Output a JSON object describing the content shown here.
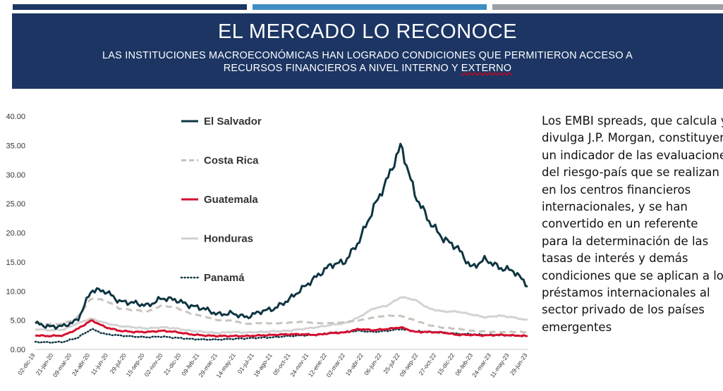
{
  "header": {
    "title": "EL MERCADO LO RECONOCE",
    "subtitle_line1": "LAS INSTITUCIONES MACROECONÓMICAS HAN LOGRADO CONDICIONES QUE PERMITIERON ACCESO A",
    "subtitle_line2a": "RECURSOS FINANCIEROS A NIVEL INTERNO Y ",
    "subtitle_line2b": "EXTERNO"
  },
  "colors": {
    "bar1": "#1c3563",
    "bar2": "#3e8ec2",
    "bar3": "#9aa0a6",
    "header_bg": "#1c3563"
  },
  "description": [
    "Los EMBI spreads, que calcula y",
    "divulga J.P. Morgan, constituyen",
    "un indicador de las evaluaciones",
    "del riesgo-país que se realizan",
    "en los centros financieros",
    "internacionales, y se han",
    "convertido en un referente",
    "para la determinación de las",
    "tasas de interés y demás",
    "condiciones que se aplican a los",
    "préstamos internacionales al",
    "sector privado de los países",
    "emergentes"
  ],
  "chart_data": {
    "type": "line",
    "ylim": [
      0,
      40
    ],
    "y_ticks": [
      "0.00",
      "5.00",
      "10.00",
      "15.00",
      "20.00",
      "25.00",
      "30.00",
      "35.00",
      "40.00"
    ],
    "grid": false,
    "legend_position": "upper-left inside",
    "x_tick_labels": [
      "02-dic-19",
      "21-jan-20",
      "09-mar-20",
      "24-abr-20",
      "11-jun-20",
      "29-jul-20",
      "15-sep-20",
      "02-nov-20",
      "21-dic-20",
      "09-feb-21",
      "29-mar-21",
      "14-may-21",
      "01-jul-21",
      "18-ago-21",
      "05-oct-21",
      "24-nov-21",
      "12-ene-22",
      "02-mar-22",
      "19-abr-22",
      "06-jun-22",
      "25-jul-22",
      "09-sep-22",
      "27-oct-22",
      "15-dic-22",
      "06-feb-23",
      "24-mar-23",
      "11-may-23",
      "29-jun-23"
    ],
    "series": [
      {
        "name": "El Salvador",
        "color": "#0e3542",
        "style": "solid",
        "values": [
          4.5,
          3.9,
          4.0,
          5.0,
          10.2,
          10.0,
          8.2,
          8.0,
          7.5,
          8.8,
          8.5,
          7.5,
          7.0,
          6.0,
          6.2,
          5.5,
          6.5,
          7.0,
          8.5,
          10.5,
          12.5,
          14.5,
          15.0,
          18.5,
          24.0,
          29.0,
          35.0,
          26.5,
          22.0,
          19.0,
          17.5,
          14.0,
          15.5,
          14.0,
          13.5,
          11.0
        ]
      },
      {
        "name": "Costa Rica",
        "color": "#c8c3bd",
        "style": "dashed",
        "values": [
          4.6,
          4.3,
          4.4,
          5.5,
          8.8,
          8.4,
          7.0,
          6.8,
          6.5,
          7.5,
          7.2,
          6.2,
          5.6,
          5.0,
          5.0,
          4.4,
          4.5,
          4.4,
          4.6,
          4.8,
          4.5,
          4.5,
          4.6,
          5.0,
          5.5,
          5.8,
          5.7,
          5.0,
          4.2,
          3.7,
          3.5,
          3.2,
          3.1,
          3.0,
          3.0,
          2.9
        ]
      },
      {
        "name": "Guatemala",
        "color": "#d6102f",
        "style": "solid",
        "values": [
          2.4,
          2.3,
          2.4,
          3.5,
          5.0,
          3.8,
          3.2,
          3.0,
          3.0,
          3.2,
          3.0,
          2.6,
          2.4,
          2.3,
          2.3,
          2.3,
          2.4,
          2.5,
          2.6,
          2.6,
          2.5,
          2.8,
          2.9,
          3.5,
          3.3,
          3.5,
          3.8,
          3.0,
          3.0,
          2.9,
          2.5,
          2.5,
          2.4,
          2.5,
          2.4,
          2.3
        ]
      },
      {
        "name": "Honduras",
        "color": "#d3d3d3",
        "style": "solid",
        "values": [
          3.5,
          3.3,
          3.4,
          4.5,
          5.3,
          4.5,
          4.0,
          3.8,
          3.6,
          3.8,
          3.6,
          3.2,
          3.0,
          2.8,
          3.0,
          2.9,
          3.0,
          3.1,
          3.2,
          3.5,
          3.8,
          4.2,
          4.5,
          5.5,
          7.0,
          7.5,
          9.0,
          8.5,
          7.0,
          6.5,
          6.5,
          6.0,
          5.5,
          5.8,
          5.5,
          5.0
        ]
      },
      {
        "name": "Panamá",
        "color": "#0e3542",
        "style": "dotted",
        "values": [
          1.3,
          1.2,
          1.3,
          2.0,
          3.5,
          2.6,
          2.4,
          2.2,
          2.1,
          2.2,
          2.0,
          1.8,
          1.7,
          1.7,
          1.8,
          1.9,
          2.0,
          2.1,
          2.3,
          2.4,
          2.5,
          2.8,
          3.0,
          3.2,
          3.0,
          3.2,
          3.5,
          3.1,
          3.0,
          2.9,
          2.7,
          2.6,
          2.5,
          2.5,
          2.4,
          2.3
        ]
      }
    ]
  }
}
